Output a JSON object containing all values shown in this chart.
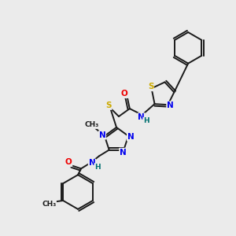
{
  "background_color": "#ebebeb",
  "bond_color": "#1a1a1a",
  "atom_colors": {
    "N": "#0000ee",
    "O": "#ee0000",
    "S": "#ccaa00",
    "C": "#1a1a1a",
    "H": "#007070"
  },
  "figsize": [
    3.0,
    3.0
  ],
  "dpi": 100
}
